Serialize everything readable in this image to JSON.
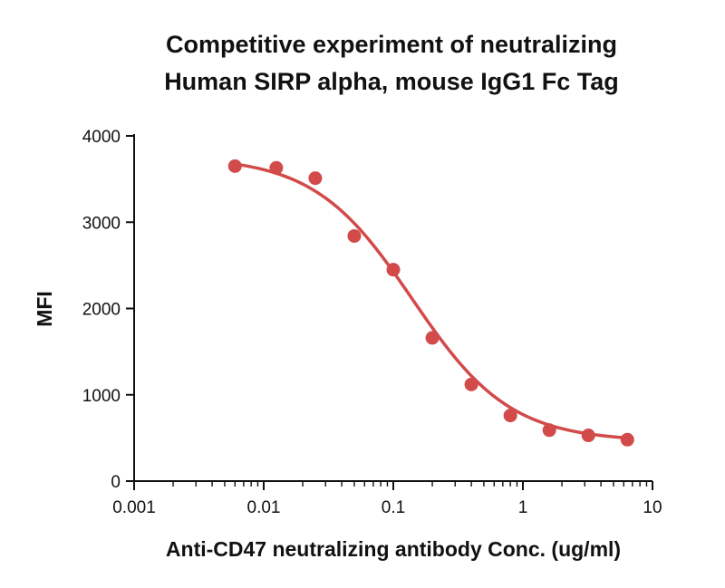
{
  "chart_data": {
    "type": "scatter",
    "title_lines": [
      "Competitive experiment of neutralizing",
      "Human SIRP alpha, mouse IgG1 Fc Tag"
    ],
    "xlabel": "Anti-CD47 neutralizing antibody Conc. (ug/ml)",
    "ylabel": "MFI",
    "x_scale": "log",
    "xlim": [
      0.001,
      10
    ],
    "ylim": [
      0,
      4000
    ],
    "x_ticks": [
      0.001,
      0.01,
      0.1,
      1,
      10
    ],
    "x_tick_labels": [
      "0.001",
      "0.01",
      "0.1",
      "1",
      "10"
    ],
    "y_ticks": [
      0,
      1000,
      2000,
      3000,
      4000
    ],
    "y_tick_labels": [
      "0",
      "1000",
      "2000",
      "3000",
      "4000"
    ],
    "grid": false,
    "color": "#d24a4a",
    "series": [
      {
        "x": [
          0.006,
          0.0125,
          0.025,
          0.05,
          0.1,
          0.2,
          0.4,
          0.8,
          1.6,
          3.2,
          6.4
        ],
        "y": [
          3650,
          3630,
          3510,
          2840,
          2450,
          1660,
          1120,
          760,
          590,
          530,
          480
        ]
      }
    ],
    "fit_curve": {
      "model": "4PL",
      "top": 3760,
      "bottom": 460,
      "ec50": 0.14,
      "hill": 1.15,
      "x_range": [
        0.006,
        6.4
      ]
    }
  }
}
